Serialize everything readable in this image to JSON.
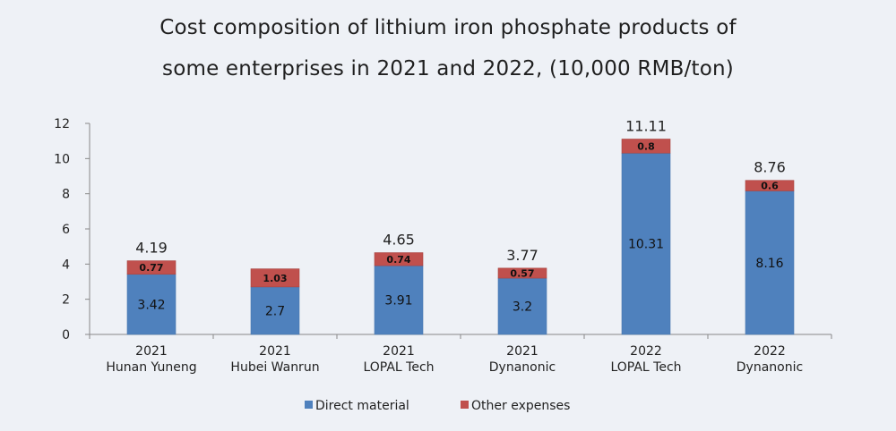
{
  "chart_data": {
    "type": "bar",
    "stacked": true,
    "title_line1": "Cost composition of lithium iron phosphate products of",
    "title_line2": "some enterprises in 2021 and 2022, (10,000 RMB/ton)",
    "categories": [
      [
        "2021",
        "Hunan Yuneng"
      ],
      [
        "2021",
        "Hubei Wanrun"
      ],
      [
        "2021",
        "LOPAL Tech"
      ],
      [
        "2021",
        "Dynanonic"
      ],
      [
        "2022",
        "LOPAL Tech"
      ],
      [
        "2022",
        "Dynanonic"
      ]
    ],
    "series": [
      {
        "name": "Direct material",
        "color": "#4f81bd",
        "values": [
          3.42,
          2.7,
          3.91,
          3.2,
          10.31,
          8.16
        ],
        "labels": [
          "3.42",
          "2.7",
          "3.91",
          "3.2",
          "10.31",
          "8.16"
        ]
      },
      {
        "name": "Other expenses",
        "color": "#c0504d",
        "values": [
          0.77,
          1.03,
          0.74,
          0.57,
          0.8,
          0.6
        ],
        "labels": [
          "0.77",
          "1.03",
          "0.74",
          "0.57",
          "0.8",
          "0.6"
        ]
      }
    ],
    "totals": [
      "4.19",
      "",
      "4.65",
      "3.77",
      "11.11",
      "8.76"
    ],
    "ylim": [
      0,
      12
    ],
    "yticks": [
      0,
      2,
      4,
      6,
      8,
      10,
      12
    ],
    "legend_position": "bottom",
    "grid": false
  }
}
